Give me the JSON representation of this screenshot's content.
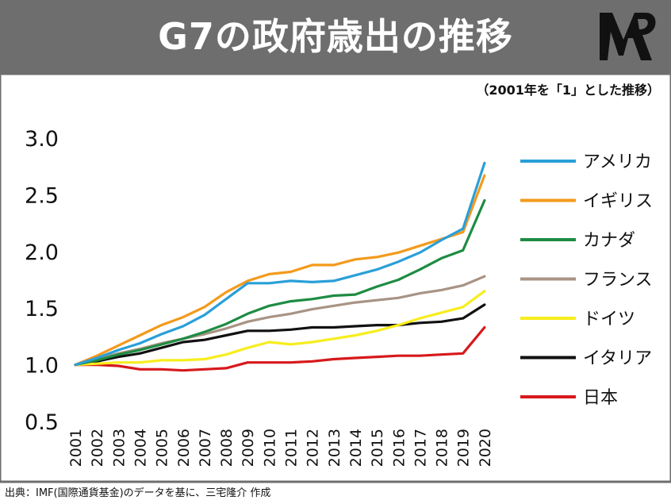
{
  "title": "G7の政府歳出の推移",
  "note": "（2001年を「1」とした推移）",
  "source": "出典：IMF(国際通貨基金)のデータを基に、三宅隆介 作成",
  "chart_data": {
    "type": "line",
    "title": "G7の政府歳出の推移",
    "ylim": [
      0.5,
      3.0
    ],
    "yticks": [
      "3.0",
      "2.5",
      "2.0",
      "1.5",
      "1.0",
      "0.5"
    ],
    "x": [
      "2001",
      "2002",
      "2003",
      "2004",
      "2005",
      "2006",
      "2007",
      "2008",
      "2009",
      "2010",
      "2011",
      "2012",
      "2013",
      "2014",
      "2015",
      "2016",
      "2017",
      "2018",
      "2019",
      "2020"
    ],
    "legend_position": "right",
    "grid": false,
    "series": [
      {
        "name": "アメリカ",
        "color": "#2a9fd8",
        "values": [
          1.0,
          1.06,
          1.13,
          1.19,
          1.27,
          1.34,
          1.44,
          1.58,
          1.72,
          1.72,
          1.74,
          1.73,
          1.74,
          1.79,
          1.84,
          1.91,
          1.99,
          2.1,
          2.2,
          2.78
        ]
      },
      {
        "name": "イギリス",
        "color": "#f39a1c",
        "values": [
          1.0,
          1.08,
          1.17,
          1.26,
          1.35,
          1.42,
          1.51,
          1.64,
          1.74,
          1.8,
          1.82,
          1.88,
          1.88,
          1.93,
          1.95,
          1.99,
          2.05,
          2.11,
          2.17,
          2.67
        ]
      },
      {
        "name": "カナダ",
        "color": "#1e8c43",
        "values": [
          1.0,
          1.04,
          1.09,
          1.13,
          1.18,
          1.23,
          1.29,
          1.36,
          1.45,
          1.52,
          1.56,
          1.58,
          1.61,
          1.62,
          1.69,
          1.75,
          1.84,
          1.94,
          2.01,
          2.45
        ]
      },
      {
        "name": "フランス",
        "color": "#a89384",
        "values": [
          1.0,
          1.05,
          1.1,
          1.14,
          1.19,
          1.23,
          1.27,
          1.32,
          1.38,
          1.42,
          1.45,
          1.49,
          1.52,
          1.55,
          1.57,
          1.59,
          1.63,
          1.66,
          1.7,
          1.78
        ]
      },
      {
        "name": "ドイツ",
        "color": "#f7ed1e",
        "values": [
          1.0,
          1.01,
          1.02,
          1.02,
          1.04,
          1.04,
          1.05,
          1.09,
          1.15,
          1.2,
          1.18,
          1.2,
          1.23,
          1.26,
          1.3,
          1.35,
          1.41,
          1.46,
          1.51,
          1.65
        ]
      },
      {
        "name": "イタリア",
        "color": "#111111",
        "values": [
          1.0,
          1.03,
          1.07,
          1.1,
          1.15,
          1.2,
          1.22,
          1.26,
          1.3,
          1.3,
          1.31,
          1.33,
          1.33,
          1.34,
          1.35,
          1.35,
          1.37,
          1.38,
          1.41,
          1.53
        ]
      },
      {
        "name": "日本",
        "color": "#d7191c",
        "values": [
          1.0,
          1.0,
          0.99,
          0.96,
          0.96,
          0.95,
          0.96,
          0.97,
          1.02,
          1.02,
          1.02,
          1.03,
          1.05,
          1.06,
          1.07,
          1.08,
          1.08,
          1.09,
          1.1,
          1.33
        ]
      }
    ]
  }
}
